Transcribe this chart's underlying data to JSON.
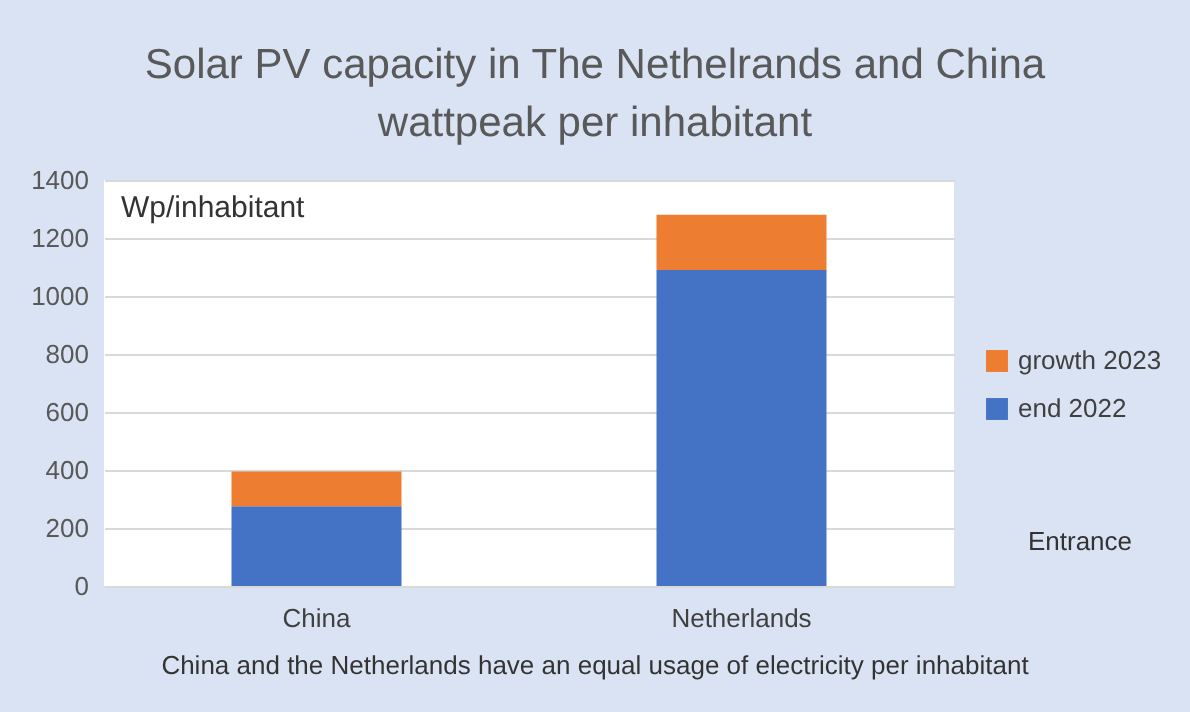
{
  "chart_data": {
    "type": "bar",
    "title": "Solar PV capacity in The Nethelrands and China",
    "subtitle": "wattpeak per inhabitant",
    "ylabel": "Wp/inhabitant",
    "categories": [
      "China",
      "Netherlands"
    ],
    "stacked": true,
    "series": [
      {
        "name": "end 2022",
        "color": "#4472c4",
        "values": [
          275,
          1090
        ]
      },
      {
        "name": "growth 2023",
        "color": "#ed7d31",
        "values": [
          120,
          190
        ]
      }
    ],
    "ylim": [
      0,
      1400
    ],
    "yticks": [
      0,
      200,
      400,
      600,
      800,
      1000,
      1200,
      1400
    ],
    "grid": "y",
    "legend": "right",
    "annotations": [
      "Entrance",
      "China and the Netherlands have an equal usage of electricity per inhabitant"
    ]
  }
}
